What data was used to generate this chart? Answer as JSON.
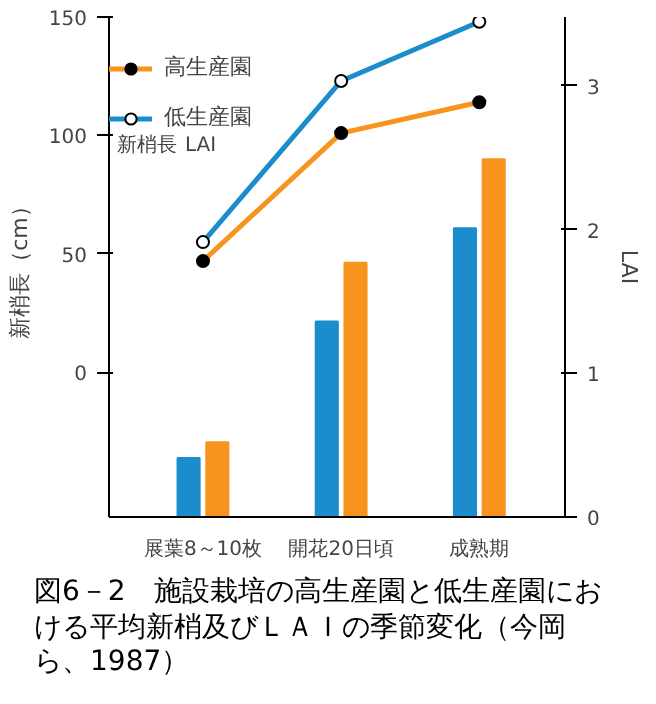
{
  "chart_data": {
    "type": "bar",
    "title": "図6－2　施設栽培の高生産園と低生産園における平均新梢及びＬＡＩの季節変化（今岡ら、1987）",
    "categories": [
      "展葉8～10枚",
      "開花20日頃",
      "成熟期"
    ],
    "ylabel": "新梢長（cm）",
    "y2label": "LAI",
    "ylim": [
      -61,
      150
    ],
    "yticks": [
      0,
      50,
      100,
      150
    ],
    "y2lim": [
      0,
      3.48
    ],
    "y2ticks": [
      0,
      1,
      2,
      3
    ],
    "annotations": [
      "新梢長",
      "LAI"
    ],
    "legend": "top left",
    "grid": false,
    "series": [
      {
        "name": "高生産園",
        "type": "line",
        "marker": "circle",
        "color": "#f7941d",
        "values": [
          47,
          101,
          114
        ]
      },
      {
        "name": "低生産園",
        "type": "line",
        "marker": "circle",
        "color": "#1b8dcc",
        "values": [
          55,
          123,
          148
        ]
      },
      {
        "axis": "y2",
        "color": "#1b8dcc",
        "values": [
          0.41,
          1.36,
          2.01
        ]
      },
      {
        "axis": "y2",
        "color": "#f7941d",
        "values": [
          0.52,
          1.77,
          2.49
        ]
      }
    ]
  }
}
